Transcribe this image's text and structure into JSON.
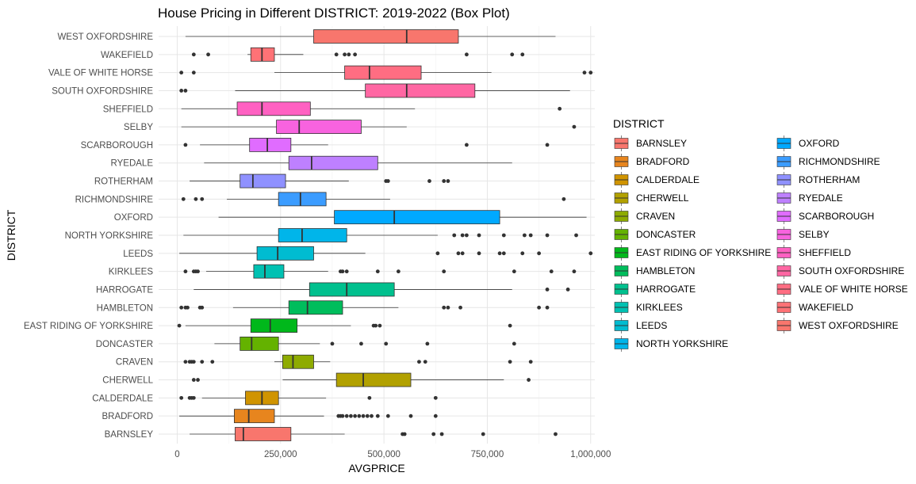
{
  "chart_data": {
    "type": "boxplot",
    "title": "House Pricing in Different DISTRICT: 2019-2022 (Box Plot)",
    "xlabel": "AVGPRICE",
    "ylabel": "DISTRICT",
    "xlim": [
      -45000,
      1010000
    ],
    "x_ticks": [
      0,
      250000,
      500000,
      750000,
      1000000
    ],
    "x_tick_labels": [
      "0",
      "250,000",
      "500,000",
      "750,000",
      "1,000,000"
    ],
    "grid": true,
    "legend": {
      "title": "DISTRICT",
      "placement": "right",
      "columns": 2
    },
    "categories": [
      "BARNSLEY",
      "BRADFORD",
      "CALDERDALE",
      "CHERWELL",
      "CRAVEN",
      "DONCASTER",
      "EAST RIDING OF YORKSHIRE",
      "HAMBLETON",
      "HARROGATE",
      "KIRKLEES",
      "LEEDS",
      "NORTH YORKSHIRE",
      "OXFORD",
      "RICHMONDSHIRE",
      "ROTHERHAM",
      "RYEDALE",
      "SCARBOROUGH",
      "SELBY",
      "SHEFFIELD",
      "SOUTH OXFORDSHIRE",
      "VALE OF WHITE HORSE",
      "WAKEFIELD",
      "WEST OXFORDSHIRE"
    ],
    "series": [
      {
        "name": "BARNSLEY",
        "color": "#F8766D",
        "whisker_low": 30000,
        "q1": 140000,
        "median": 160000,
        "q3": 275000,
        "whisker_high": 405000,
        "outliers": [
          545000,
          550000,
          620000,
          640000,
          740000,
          915000
        ]
      },
      {
        "name": "BRADFORD",
        "color": "#E7851E",
        "whisker_low": 5000,
        "q1": 138000,
        "median": 173000,
        "q3": 235000,
        "whisker_high": 355000,
        "outliers": [
          390000,
          395000,
          400000,
          410000,
          420000,
          430000,
          440000,
          450000,
          460000,
          470000,
          485000,
          510000,
          565000,
          625000
        ]
      },
      {
        "name": "CALDERDALE",
        "color": "#D09400",
        "whisker_low": 60000,
        "q1": 165000,
        "median": 205000,
        "q3": 245000,
        "whisker_high": 360000,
        "outliers": [
          10000,
          30000,
          35000,
          40000,
          465000,
          625000
        ]
      },
      {
        "name": "CHERWELL",
        "color": "#B2A100",
        "whisker_low": 255000,
        "q1": 385000,
        "median": 450000,
        "q3": 565000,
        "whisker_high": 790000,
        "outliers": [
          40000,
          50000,
          850000
        ]
      },
      {
        "name": "CRAVEN",
        "color": "#8EAB00",
        "whisker_low": 235000,
        "q1": 255000,
        "median": 280000,
        "q3": 330000,
        "whisker_high": 370000,
        "outliers": [
          20000,
          30000,
          35000,
          40000,
          60000,
          85000,
          585000,
          600000,
          805000,
          855000
        ]
      },
      {
        "name": "DONCASTER",
        "color": "#64B200",
        "whisker_low": 90000,
        "q1": 152000,
        "median": 180000,
        "q3": 245000,
        "whisker_high": 345000,
        "outliers": [
          375000,
          445000,
          505000,
          605000,
          815000
        ]
      },
      {
        "name": "EAST RIDING OF YORKSHIRE",
        "color": "#00B81B",
        "whisker_low": 20000,
        "q1": 178000,
        "median": 225000,
        "q3": 290000,
        "whisker_high": 420000,
        "outliers": [
          5000,
          475000,
          480000,
          490000,
          805000
        ]
      },
      {
        "name": "HAMBLETON",
        "color": "#00BD5C",
        "whisker_low": 135000,
        "q1": 270000,
        "median": 315000,
        "q3": 400000,
        "whisker_high": 535000,
        "outliers": [
          10000,
          20000,
          25000,
          55000,
          60000,
          645000,
          655000,
          685000,
          875000,
          895000
        ]
      },
      {
        "name": "HARROGATE",
        "color": "#00C08E",
        "whisker_low": 40000,
        "q1": 320000,
        "median": 410000,
        "q3": 525000,
        "whisker_high": 810000,
        "outliers": [
          895000,
          945000
        ]
      },
      {
        "name": "KIRKLEES",
        "color": "#00C1B2",
        "whisker_low": 70000,
        "q1": 185000,
        "median": 212000,
        "q3": 258000,
        "whisker_high": 365000,
        "outliers": [
          20000,
          40000,
          45000,
          50000,
          395000,
          400000,
          410000,
          485000,
          535000,
          645000,
          815000,
          905000,
          960000
        ]
      },
      {
        "name": "LEEDS",
        "color": "#00BCD1",
        "whisker_low": 5000,
        "q1": 193000,
        "median": 243000,
        "q3": 330000,
        "whisker_high": 455000,
        "outliers": [
          630000,
          680000,
          690000,
          730000,
          780000,
          790000,
          835000,
          875000,
          1000000
        ]
      },
      {
        "name": "NORTH YORKSHIRE",
        "color": "#00B5EA",
        "whisker_low": 15000,
        "q1": 245000,
        "median": 302000,
        "q3": 410000,
        "whisker_high": 630000,
        "outliers": [
          670000,
          690000,
          700000,
          730000,
          790000,
          840000,
          855000,
          895000,
          965000
        ]
      },
      {
        "name": "OXFORD",
        "color": "#00A9FF",
        "whisker_low": 100000,
        "q1": 380000,
        "median": 525000,
        "q3": 780000,
        "whisker_high": 990000,
        "outliers": []
      },
      {
        "name": "RICHMONDSHIRE",
        "color": "#3B9CFF",
        "whisker_low": 120000,
        "q1": 245000,
        "median": 298000,
        "q3": 360000,
        "whisker_high": 515000,
        "outliers": [
          15000,
          45000,
          60000,
          935000
        ]
      },
      {
        "name": "ROTHERHAM",
        "color": "#8F91FF",
        "whisker_low": 30000,
        "q1": 152000,
        "median": 183000,
        "q3": 262000,
        "whisker_high": 415000,
        "outliers": [
          505000,
          510000,
          610000,
          645000,
          655000
        ]
      },
      {
        "name": "RYEDALE",
        "color": "#BE80FF",
        "whisker_low": 65000,
        "q1": 270000,
        "median": 325000,
        "q3": 485000,
        "whisker_high": 810000,
        "outliers": []
      },
      {
        "name": "SCARBOROUGH",
        "color": "#E06CFF",
        "whisker_low": 55000,
        "q1": 175000,
        "median": 218000,
        "q3": 275000,
        "whisker_high": 365000,
        "outliers": [
          20000,
          700000,
          895000
        ]
      },
      {
        "name": "SELBY",
        "color": "#F863DF",
        "whisker_low": 10000,
        "q1": 240000,
        "median": 295000,
        "q3": 445000,
        "whisker_high": 555000,
        "outliers": [
          960000
        ]
      },
      {
        "name": "SHEFFIELD",
        "color": "#FF61C2",
        "whisker_low": 10000,
        "q1": 145000,
        "median": 205000,
        "q3": 322000,
        "whisker_high": 575000,
        "outliers": [
          925000
        ]
      },
      {
        "name": "SOUTH OXFORDSHIRE",
        "color": "#FF67A3",
        "whisker_low": 140000,
        "q1": 455000,
        "median": 555000,
        "q3": 720000,
        "whisker_high": 950000,
        "outliers": [
          10000,
          20000
        ]
      },
      {
        "name": "VALE OF WHITE HORSE",
        "color": "#FF6D82",
        "whisker_low": 235000,
        "q1": 405000,
        "median": 465000,
        "q3": 590000,
        "whisker_high": 760000,
        "outliers": [
          10000,
          40000,
          985000,
          1000000
        ]
      },
      {
        "name": "WAKEFIELD",
        "color": "#FF7276",
        "whisker_low": 170000,
        "q1": 178000,
        "median": 205000,
        "q3": 235000,
        "whisker_high": 305000,
        "outliers": [
          40000,
          75000,
          385000,
          405000,
          415000,
          430000,
          700000,
          810000,
          835000
        ]
      },
      {
        "name": "WEST OXFORDSHIRE",
        "color": "#F8766D",
        "whisker_low": 20000,
        "q1": 330000,
        "median": 555000,
        "q3": 680000,
        "whisker_high": 915000,
        "outliers": []
      }
    ]
  }
}
